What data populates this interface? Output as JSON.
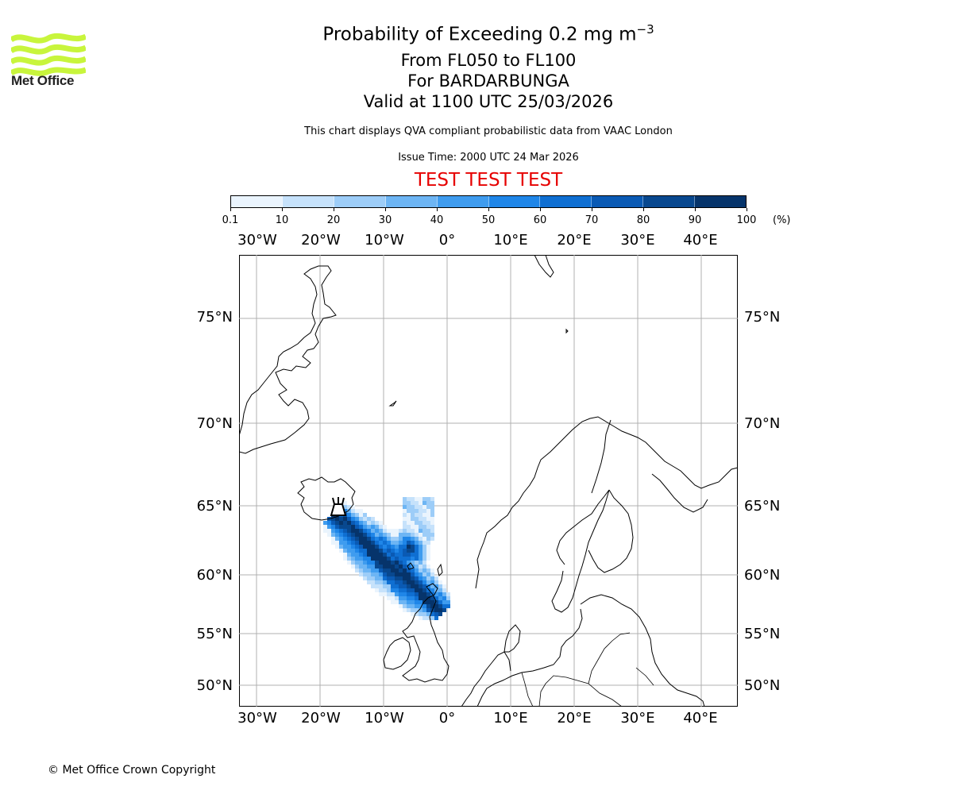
{
  "logo": {
    "text": "Met Office",
    "color": "#c8f53c"
  },
  "title": {
    "main": "Probability of Exceeding 0.2 mg m",
    "main_superscript": "−3",
    "level": "From FL050 to FL100",
    "volcano": "For BARDARBUNGA",
    "valid": "Valid at 1100 UTC 25/03/2026",
    "description": "This chart displays QVA compliant probabilistic data from VAAC London",
    "issue": "Issue Time: 2000 UTC 24 Mar 2026",
    "test_banner": "TEST TEST TEST",
    "test_color": "#e60000"
  },
  "colorbar": {
    "ticks": [
      "0.1",
      "10",
      "20",
      "30",
      "40",
      "50",
      "60",
      "70",
      "80",
      "90",
      "100"
    ],
    "unit": "(%)",
    "colors": [
      "#eaf4fd",
      "#c6e2fb",
      "#9dcdf8",
      "#6db5f4",
      "#3f9cef",
      "#1f86e8",
      "#0f6fd2",
      "#0a5ab4",
      "#08488f",
      "#06346b"
    ]
  },
  "map": {
    "lon_labels": [
      "30°W",
      "20°W",
      "10°W",
      "0°",
      "10°E",
      "20°E",
      "30°E",
      "40°E"
    ],
    "lat_labels": [
      "75°N",
      "70°N",
      "65°N",
      "60°N",
      "55°N",
      "50°N"
    ],
    "volcano_icon": "volcano-icon"
  },
  "footer": {
    "copyright": "© Met Office Crown Copyright"
  }
}
